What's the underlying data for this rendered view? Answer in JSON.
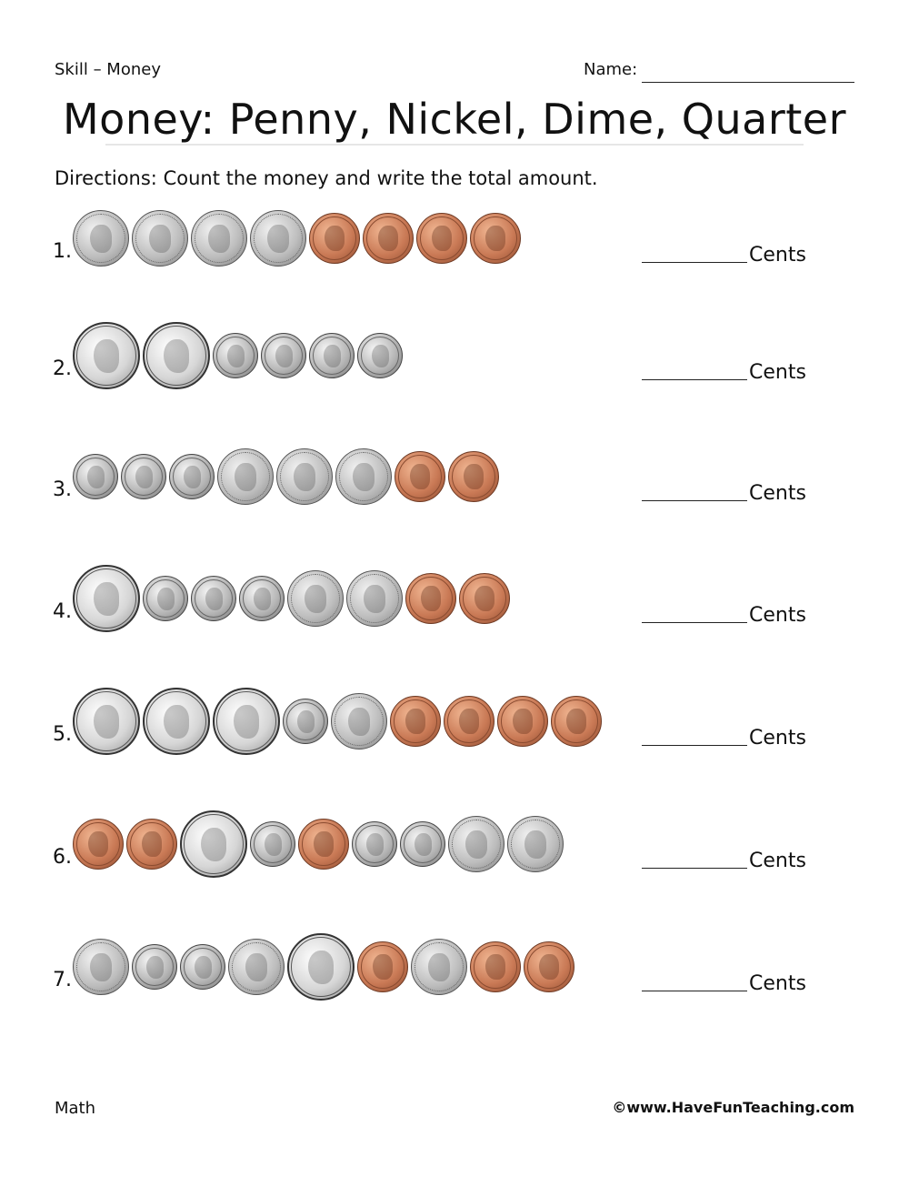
{
  "header": {
    "skill": "Skill – Money",
    "name_label": "Name:"
  },
  "title": "Money: Penny, Nickel, Dime, Quarter",
  "directions": {
    "label": "Directions:",
    "text": " Count the money and write the total amount."
  },
  "answer_suffix": "Cents",
  "coin_icons": {
    "penny": "penny-icon",
    "nickel": "nickel-icon",
    "dime": "dime-icon",
    "quarter": "quarter-icon"
  },
  "problems": [
    {
      "number": "1.",
      "coins": [
        "nickel",
        "nickel",
        "nickel",
        "nickel",
        "penny",
        "penny",
        "penny",
        "penny"
      ]
    },
    {
      "number": "2.",
      "coins": [
        "quarter",
        "quarter",
        "dime",
        "dime",
        "dime",
        "dime"
      ]
    },
    {
      "number": "3.",
      "coins": [
        "dime",
        "dime",
        "dime",
        "nickel",
        "nickel",
        "nickel",
        "penny",
        "penny"
      ]
    },
    {
      "number": "4.",
      "coins": [
        "quarter",
        "dime",
        "dime",
        "dime",
        "nickel",
        "nickel",
        "penny",
        "penny"
      ]
    },
    {
      "number": "5.",
      "coins": [
        "quarter",
        "quarter",
        "quarter",
        "dime",
        "nickel",
        "penny",
        "penny",
        "penny",
        "penny"
      ]
    },
    {
      "number": "6.",
      "coins": [
        "penny",
        "penny",
        "quarter",
        "dime",
        "penny",
        "dime",
        "dime",
        "nickel",
        "nickel"
      ]
    },
    {
      "number": "7.",
      "coins": [
        "nickel",
        "dime",
        "dime",
        "nickel",
        "quarter",
        "penny",
        "nickel",
        "penny",
        "penny"
      ]
    }
  ],
  "footer": {
    "subject": "Math",
    "copyright": "©www.HaveFunTeaching.com"
  }
}
